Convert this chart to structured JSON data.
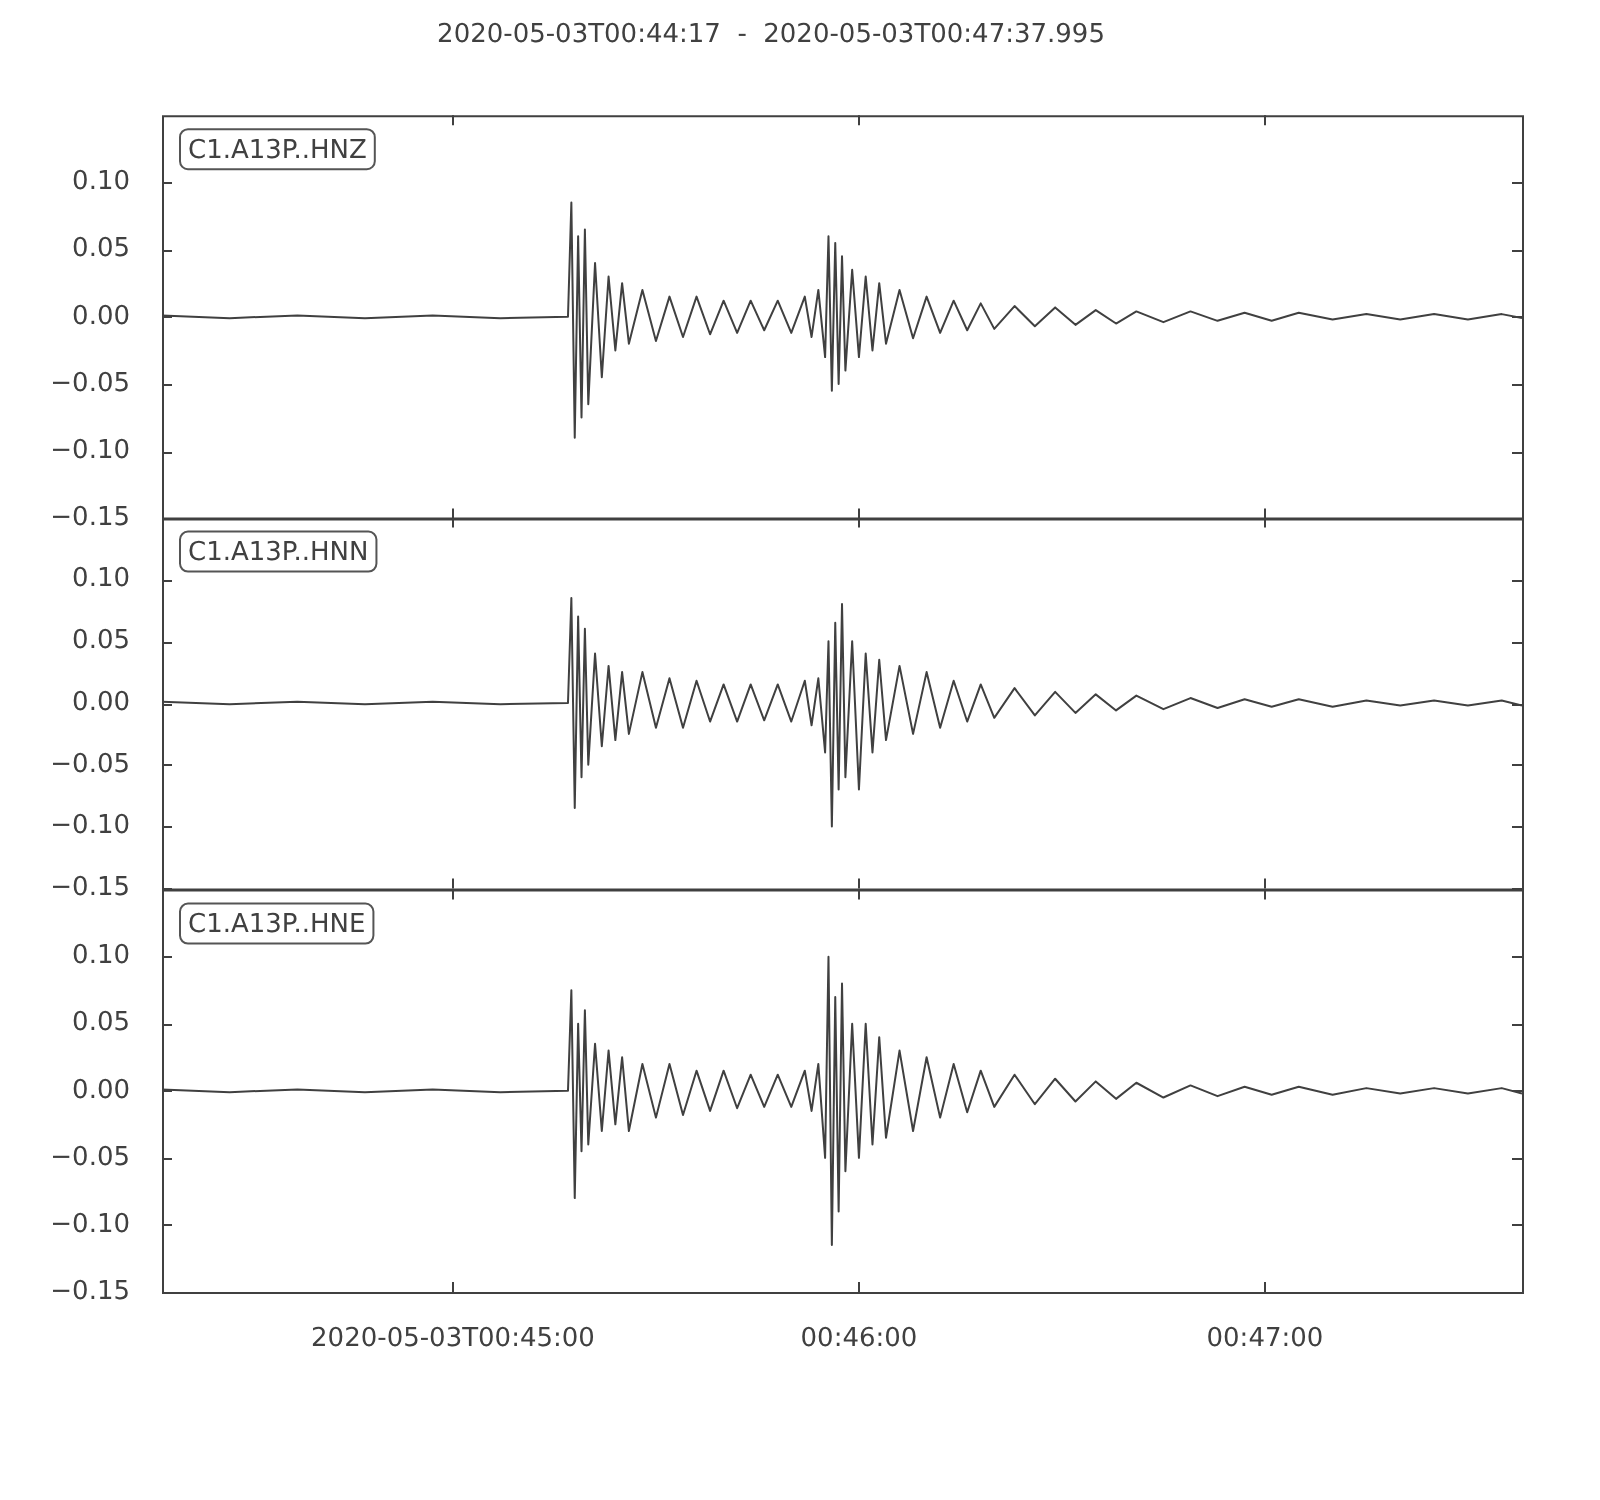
{
  "chart_data": [
    {
      "type": "line",
      "title": "2020-05-03T00:44:17  -  2020-05-03T00:47:37.995",
      "annotations": [
        "C1.A13P..HNZ"
      ],
      "tick_labels": "y",
      "xlim": [
        "2020-05-03T00:44:17",
        "2020-05-03T00:47:37.995"
      ],
      "xticks": [
        {
          "value": "2020-05-03T00:45:00",
          "label": null
        },
        {
          "value": "2020-05-03T00:46:00",
          "label": null
        },
        {
          "value": "2020-05-03T00:47:00",
          "label": null
        }
      ],
      "ylim": [
        -0.15,
        0.15
      ],
      "yticks": [
        {
          "value": -0.15,
          "label": "−0.15"
        },
        {
          "value": -0.1,
          "label": "−0.10"
        },
        {
          "value": -0.05,
          "label": "−0.05"
        },
        {
          "value": 0,
          "label": "0.00"
        },
        {
          "value": 0.05,
          "label": "0.05"
        },
        {
          "value": 0.1,
          "label": "0.10"
        }
      ],
      "x": [
        "2020-05-03T00:44:17",
        "2020-05-03T00:44:27",
        "2020-05-03T00:44:37",
        "2020-05-03T00:44:47",
        "2020-05-03T00:44:57",
        "2020-05-03T00:45:07",
        "2020-05-03T00:45:17",
        "2020-05-03T00:45:17.5",
        "2020-05-03T00:45:18",
        "2020-05-03T00:45:18.5",
        "2020-05-03T00:45:19",
        "2020-05-03T00:45:19.5",
        "2020-05-03T00:45:20",
        "2020-05-03T00:45:21",
        "2020-05-03T00:45:22",
        "2020-05-03T00:45:23",
        "2020-05-03T00:45:24",
        "2020-05-03T00:45:25",
        "2020-05-03T00:45:26",
        "2020-05-03T00:45:28",
        "2020-05-03T00:45:30",
        "2020-05-03T00:45:32",
        "2020-05-03T00:45:34",
        "2020-05-03T00:45:36",
        "2020-05-03T00:45:38",
        "2020-05-03T00:45:40",
        "2020-05-03T00:45:42",
        "2020-05-03T00:45:44",
        "2020-05-03T00:45:46",
        "2020-05-03T00:45:48",
        "2020-05-03T00:45:50",
        "2020-05-03T00:45:52",
        "2020-05-03T00:45:53",
        "2020-05-03T00:45:54",
        "2020-05-03T00:45:55",
        "2020-05-03T00:45:55.5",
        "2020-05-03T00:45:56",
        "2020-05-03T00:45:56.5",
        "2020-05-03T00:45:57",
        "2020-05-03T00:45:57.5",
        "2020-05-03T00:45:58",
        "2020-05-03T00:45:59",
        "2020-05-03T00:46:00",
        "2020-05-03T00:46:01",
        "2020-05-03T00:46:02",
        "2020-05-03T00:46:03",
        "2020-05-03T00:46:04",
        "2020-05-03T00:46:06",
        "2020-05-03T00:46:08",
        "2020-05-03T00:46:10",
        "2020-05-03T00:46:12",
        "2020-05-03T00:46:14",
        "2020-05-03T00:46:16",
        "2020-05-03T00:46:18",
        "2020-05-03T00:46:20",
        "2020-05-03T00:46:23",
        "2020-05-03T00:46:26",
        "2020-05-03T00:46:29",
        "2020-05-03T00:46:32",
        "2020-05-03T00:46:35",
        "2020-05-03T00:46:38",
        "2020-05-03T00:46:41",
        "2020-05-03T00:46:45",
        "2020-05-03T00:46:49",
        "2020-05-03T00:46:53",
        "2020-05-03T00:46:57",
        "2020-05-03T00:47:01",
        "2020-05-03T00:47:05",
        "2020-05-03T00:47:10",
        "2020-05-03T00:47:15",
        "2020-05-03T00:47:20",
        "2020-05-03T00:47:25",
        "2020-05-03T00:47:30",
        "2020-05-03T00:47:35",
        "2020-05-03T00:47:37.995"
      ],
      "series": [
        {
          "color": "#404040",
          "values": [
            0.001,
            -0.001,
            0.001,
            -0.001,
            0.001,
            -0.001,
            0,
            0.085,
            -0.09,
            0.06,
            -0.075,
            0.065,
            -0.065,
            0.04,
            -0.045,
            0.03,
            -0.025,
            0.025,
            -0.02,
            0.02,
            -0.018,
            0.015,
            -0.015,
            0.015,
            -0.013,
            0.012,
            -0.012,
            0.012,
            -0.01,
            0.012,
            -0.012,
            0.015,
            -0.015,
            0.02,
            -0.03,
            0.06,
            -0.055,
            0.055,
            -0.05,
            0.045,
            -0.04,
            0.035,
            -0.03,
            0.03,
            -0.025,
            0.025,
            -0.02,
            0.02,
            -0.016,
            0.015,
            -0.012,
            0.012,
            -0.01,
            0.01,
            -0.009,
            0.008,
            -0.007,
            0.007,
            -0.006,
            0.005,
            -0.005,
            0.004,
            -0.004,
            0.004,
            -0.003,
            0.003,
            -0.003,
            0.003,
            -0.002,
            0.002,
            -0.002,
            0.002,
            -0.002,
            0.002,
            -0.001
          ]
        }
      ]
    },
    {
      "type": "line",
      "annotations": [
        "C1.A13P..HNN"
      ],
      "tick_labels": "y",
      "xlim": [
        "2020-05-03T00:44:17",
        "2020-05-03T00:47:37.995"
      ],
      "xticks": [
        {
          "value": "2020-05-03T00:45:00",
          "label": null
        },
        {
          "value": "2020-05-03T00:46:00",
          "label": null
        },
        {
          "value": "2020-05-03T00:47:00",
          "label": null
        }
      ],
      "ylim": [
        -0.15,
        0.15
      ],
      "yticks": [
        {
          "value": -0.15,
          "label": "−0.15"
        },
        {
          "value": -0.1,
          "label": "−0.10"
        },
        {
          "value": -0.05,
          "label": "−0.05"
        },
        {
          "value": 0,
          "label": "0.00"
        },
        {
          "value": 0.05,
          "label": "0.05"
        },
        {
          "value": 0.1,
          "label": "0.10"
        }
      ],
      "x": [
        "2020-05-03T00:44:17",
        "2020-05-03T00:44:27",
        "2020-05-03T00:44:37",
        "2020-05-03T00:44:47",
        "2020-05-03T00:44:57",
        "2020-05-03T00:45:07",
        "2020-05-03T00:45:17",
        "2020-05-03T00:45:17.5",
        "2020-05-03T00:45:18",
        "2020-05-03T00:45:18.5",
        "2020-05-03T00:45:19",
        "2020-05-03T00:45:19.5",
        "2020-05-03T00:45:20",
        "2020-05-03T00:45:21",
        "2020-05-03T00:45:22",
        "2020-05-03T00:45:23",
        "2020-05-03T00:45:24",
        "2020-05-03T00:45:25",
        "2020-05-03T00:45:26",
        "2020-05-03T00:45:28",
        "2020-05-03T00:45:30",
        "2020-05-03T00:45:32",
        "2020-05-03T00:45:34",
        "2020-05-03T00:45:36",
        "2020-05-03T00:45:38",
        "2020-05-03T00:45:40",
        "2020-05-03T00:45:42",
        "2020-05-03T00:45:44",
        "2020-05-03T00:45:46",
        "2020-05-03T00:45:48",
        "2020-05-03T00:45:50",
        "2020-05-03T00:45:52",
        "2020-05-03T00:45:53",
        "2020-05-03T00:45:54",
        "2020-05-03T00:45:55",
        "2020-05-03T00:45:55.5",
        "2020-05-03T00:45:56",
        "2020-05-03T00:45:56.5",
        "2020-05-03T00:45:57",
        "2020-05-03T00:45:57.5",
        "2020-05-03T00:45:58",
        "2020-05-03T00:45:59",
        "2020-05-03T00:46:00",
        "2020-05-03T00:46:01",
        "2020-05-03T00:46:02",
        "2020-05-03T00:46:03",
        "2020-05-03T00:46:04",
        "2020-05-03T00:46:06",
        "2020-05-03T00:46:08",
        "2020-05-03T00:46:10",
        "2020-05-03T00:46:12",
        "2020-05-03T00:46:14",
        "2020-05-03T00:46:16",
        "2020-05-03T00:46:18",
        "2020-05-03T00:46:20",
        "2020-05-03T00:46:23",
        "2020-05-03T00:46:26",
        "2020-05-03T00:46:29",
        "2020-05-03T00:46:32",
        "2020-05-03T00:46:35",
        "2020-05-03T00:46:38",
        "2020-05-03T00:46:41",
        "2020-05-03T00:46:45",
        "2020-05-03T00:46:49",
        "2020-05-03T00:46:53",
        "2020-05-03T00:46:57",
        "2020-05-03T00:47:01",
        "2020-05-03T00:47:05",
        "2020-05-03T00:47:10",
        "2020-05-03T00:47:15",
        "2020-05-03T00:47:20",
        "2020-05-03T00:47:25",
        "2020-05-03T00:47:30",
        "2020-05-03T00:47:35",
        "2020-05-03T00:47:37.995"
      ],
      "series": [
        {
          "color": "#404040",
          "values": [
            0.001,
            -0.001,
            0.001,
            -0.001,
            0.001,
            -0.001,
            0,
            0.085,
            -0.085,
            0.07,
            -0.06,
            0.06,
            -0.05,
            0.04,
            -0.035,
            0.03,
            -0.03,
            0.025,
            -0.025,
            0.025,
            -0.02,
            0.02,
            -0.02,
            0.018,
            -0.015,
            0.015,
            -0.015,
            0.015,
            -0.014,
            0.015,
            -0.015,
            0.018,
            -0.018,
            0.02,
            -0.04,
            0.05,
            -0.1,
            0.065,
            -0.07,
            0.08,
            -0.06,
            0.05,
            -0.07,
            0.04,
            -0.04,
            0.035,
            -0.03,
            0.03,
            -0.025,
            0.025,
            -0.02,
            0.018,
            -0.015,
            0.015,
            -0.012,
            0.012,
            -0.01,
            0.009,
            -0.008,
            0.007,
            -0.006,
            0.006,
            -0.005,
            0.004,
            -0.004,
            0.003,
            -0.003,
            0.003,
            -0.003,
            0.002,
            -0.002,
            0.002,
            -0.002,
            0.002,
            -0.002
          ]
        }
      ]
    },
    {
      "type": "line",
      "annotations": [
        "C1.A13P..HNE"
      ],
      "xlim": [
        "2020-05-03T00:44:17",
        "2020-05-03T00:47:37.995"
      ],
      "xticks": [
        {
          "value": "2020-05-03T00:45:00",
          "label": "2020-05-03T00:45:00"
        },
        {
          "value": "2020-05-03T00:46:00",
          "label": "00:46:00"
        },
        {
          "value": "2020-05-03T00:47:00",
          "label": "00:47:00"
        }
      ],
      "ylim": [
        -0.15,
        0.15
      ],
      "yticks": [
        {
          "value": -0.15,
          "label": "−0.15"
        },
        {
          "value": -0.1,
          "label": "−0.10"
        },
        {
          "value": -0.05,
          "label": "−0.05"
        },
        {
          "value": 0,
          "label": "0.00"
        },
        {
          "value": 0.05,
          "label": "0.05"
        },
        {
          "value": 0.1,
          "label": "0.10"
        }
      ],
      "x": [
        "2020-05-03T00:44:17",
        "2020-05-03T00:44:27",
        "2020-05-03T00:44:37",
        "2020-05-03T00:44:47",
        "2020-05-03T00:44:57",
        "2020-05-03T00:45:07",
        "2020-05-03T00:45:17",
        "2020-05-03T00:45:17.5",
        "2020-05-03T00:45:18",
        "2020-05-03T00:45:18.5",
        "2020-05-03T00:45:19",
        "2020-05-03T00:45:19.5",
        "2020-05-03T00:45:20",
        "2020-05-03T00:45:21",
        "2020-05-03T00:45:22",
        "2020-05-03T00:45:23",
        "2020-05-03T00:45:24",
        "2020-05-03T00:45:25",
        "2020-05-03T00:45:26",
        "2020-05-03T00:45:28",
        "2020-05-03T00:45:30",
        "2020-05-03T00:45:32",
        "2020-05-03T00:45:34",
        "2020-05-03T00:45:36",
        "2020-05-03T00:45:38",
        "2020-05-03T00:45:40",
        "2020-05-03T00:45:42",
        "2020-05-03T00:45:44",
        "2020-05-03T00:45:46",
        "2020-05-03T00:45:48",
        "2020-05-03T00:45:50",
        "2020-05-03T00:45:52",
        "2020-05-03T00:45:53",
        "2020-05-03T00:45:54",
        "2020-05-03T00:45:55",
        "2020-05-03T00:45:55.5",
        "2020-05-03T00:45:56",
        "2020-05-03T00:45:56.5",
        "2020-05-03T00:45:57",
        "2020-05-03T00:45:57.5",
        "2020-05-03T00:45:58",
        "2020-05-03T00:45:59",
        "2020-05-03T00:46:00",
        "2020-05-03T00:46:01",
        "2020-05-03T00:46:02",
        "2020-05-03T00:46:03",
        "2020-05-03T00:46:04",
        "2020-05-03T00:46:06",
        "2020-05-03T00:46:08",
        "2020-05-03T00:46:10",
        "2020-05-03T00:46:12",
        "2020-05-03T00:46:14",
        "2020-05-03T00:46:16",
        "2020-05-03T00:46:18",
        "2020-05-03T00:46:20",
        "2020-05-03T00:46:23",
        "2020-05-03T00:46:26",
        "2020-05-03T00:46:29",
        "2020-05-03T00:46:32",
        "2020-05-03T00:46:35",
        "2020-05-03T00:46:38",
        "2020-05-03T00:46:41",
        "2020-05-03T00:46:45",
        "2020-05-03T00:46:49",
        "2020-05-03T00:46:53",
        "2020-05-03T00:46:57",
        "2020-05-03T00:47:01",
        "2020-05-03T00:47:05",
        "2020-05-03T00:47:10",
        "2020-05-03T00:47:15",
        "2020-05-03T00:47:20",
        "2020-05-03T00:47:25",
        "2020-05-03T00:47:30",
        "2020-05-03T00:47:35",
        "2020-05-03T00:47:37.995"
      ],
      "series": [
        {
          "color": "#404040",
          "values": [
            0.001,
            -0.001,
            0.001,
            -0.001,
            0.001,
            -0.001,
            0,
            0.075,
            -0.08,
            0.05,
            -0.045,
            0.06,
            -0.04,
            0.035,
            -0.03,
            0.03,
            -0.025,
            0.025,
            -0.03,
            0.02,
            -0.02,
            0.02,
            -0.018,
            0.015,
            -0.015,
            0.015,
            -0.013,
            0.012,
            -0.012,
            0.012,
            -0.012,
            0.015,
            -0.015,
            0.02,
            -0.05,
            0.1,
            -0.115,
            0.07,
            -0.09,
            0.08,
            -0.06,
            0.05,
            -0.05,
            0.05,
            -0.04,
            0.04,
            -0.035,
            0.03,
            -0.03,
            0.025,
            -0.02,
            0.02,
            -0.016,
            0.015,
            -0.012,
            0.012,
            -0.01,
            0.009,
            -0.008,
            0.007,
            -0.006,
            0.006,
            -0.005,
            0.004,
            -0.004,
            0.003,
            -0.003,
            0.003,
            -0.003,
            0.002,
            -0.002,
            0.002,
            -0.002,
            0.002,
            -0.002
          ]
        }
      ]
    }
  ]
}
